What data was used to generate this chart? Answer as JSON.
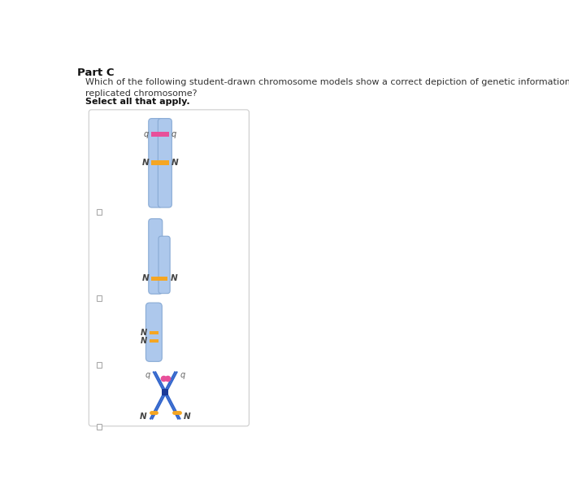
{
  "title_part": "Part C",
  "question": "Which of the following student-drawn chromosome models show a correct depiction of genetic information in a\nreplicated chromosome?",
  "select_text": "Select all that apply.",
  "bg_color": "#ffffff",
  "chrom_fill": "#adc8ec",
  "chrom_edge": "#88aad4",
  "cent_orange": "#f5a623",
  "cent_pink": "#e8509a",
  "blue_line": "#3366cc",
  "blue_dark": "#1a3a99",
  "pink_dot": "#e8509a",
  "orange_mark": "#f5a623",
  "text_color": "#333333",
  "box_edge": "#cccccc",
  "check_edge": "#aaaaaa"
}
